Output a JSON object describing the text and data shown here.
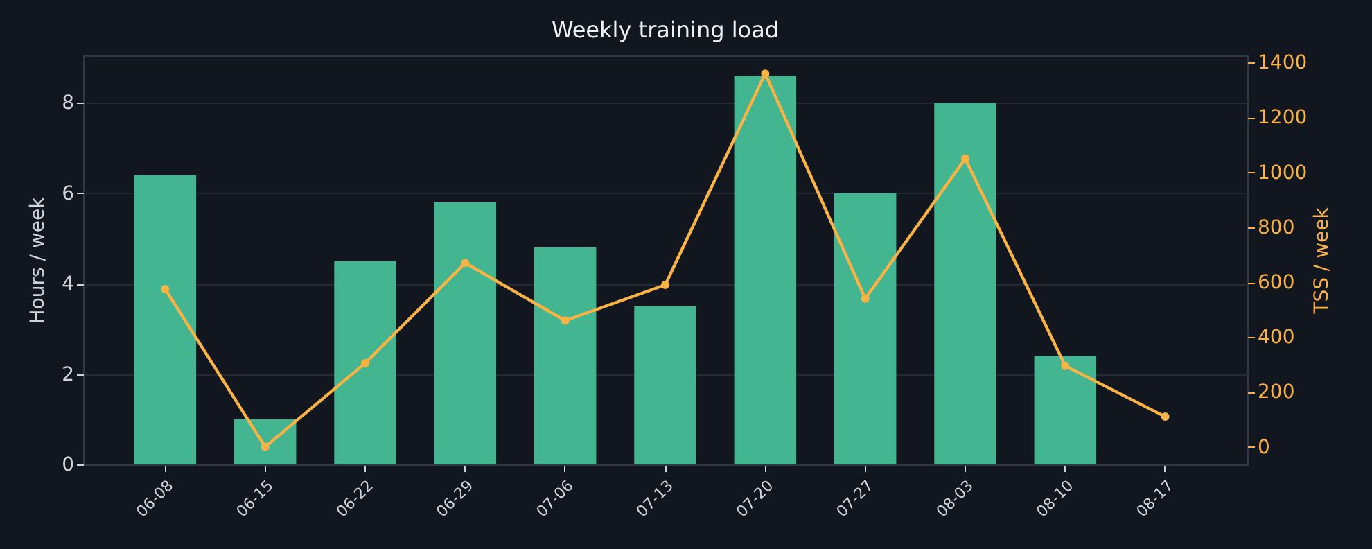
{
  "chart_data": {
    "type": "bar",
    "title": "Weekly training load",
    "ylabel": "Hours / week",
    "y2label": "TSS / week",
    "categories": [
      "06-08",
      "06-15",
      "06-22",
      "06-29",
      "07-06",
      "07-13",
      "07-20",
      "07-27",
      "08-03",
      "08-10",
      "08-17"
    ],
    "series": [
      {
        "color": "#44b591",
        "values": [
          6.4,
          1.0,
          4.5,
          5.8,
          4.8,
          3.5,
          8.6,
          6.0,
          8.0,
          2.4,
          null
        ]
      },
      {
        "type": "line",
        "axis": "y2",
        "color": "#f9b243",
        "values": [
          575,
          0,
          305,
          670,
          460,
          590,
          1360,
          540,
          1050,
          295,
          110
        ]
      }
    ],
    "ylim": [
      0,
      9.05
    ],
    "yticks": [
      0,
      2,
      4,
      6,
      8
    ],
    "y2lim": [
      -64,
      1426
    ],
    "y2ticks": [
      0,
      200,
      400,
      600,
      800,
      1000,
      1200,
      1400
    ],
    "grid": "y",
    "marker": "circle",
    "line_style": "solid"
  }
}
